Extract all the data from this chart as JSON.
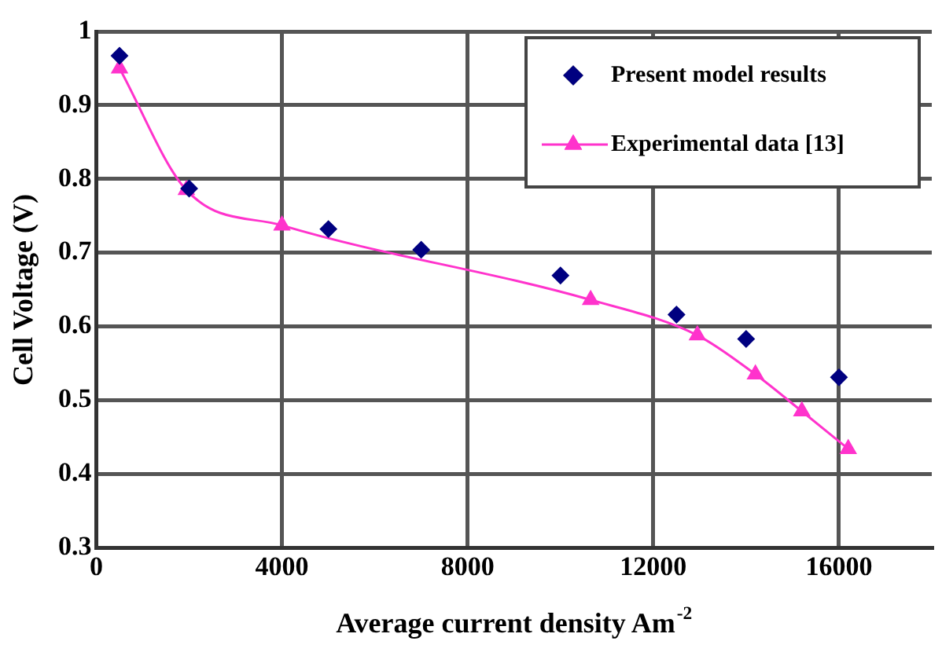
{
  "chart_data": {
    "type": "scatter",
    "xlabel": "Average current density Am$^{-2}$",
    "ylabel": "Cell Voltage (V)",
    "xlim": [
      0,
      18000
    ],
    "xticks": [
      0,
      4000,
      8000,
      12000,
      16000
    ],
    "ylim": [
      0.3,
      1
    ],
    "yticks": [
      0.3,
      0.4,
      0.5,
      0.6,
      0.7,
      0.8,
      0.9,
      1
    ],
    "grid": true,
    "legend": "top right",
    "series": [
      {
        "name": "Present model results",
        "marker": "diamond",
        "color": "#000080",
        "x": [
          500,
          2000,
          5000,
          7000,
          10000,
          12500,
          14000,
          16000
        ],
        "values": [
          0.967,
          0.787,
          0.732,
          0.704,
          0.669,
          0.616,
          0.583,
          0.531
        ]
      },
      {
        "name": "Experimental data [13]",
        "type": "line",
        "marker": "triangle",
        "color": "#ff33cc",
        "x": [
          500,
          1940,
          4000,
          10650,
          12950,
          14200,
          15200,
          16200
        ],
        "values": [
          0.95,
          0.785,
          0.737,
          0.636,
          0.588,
          0.535,
          0.485,
          0.434
        ]
      }
    ]
  }
}
